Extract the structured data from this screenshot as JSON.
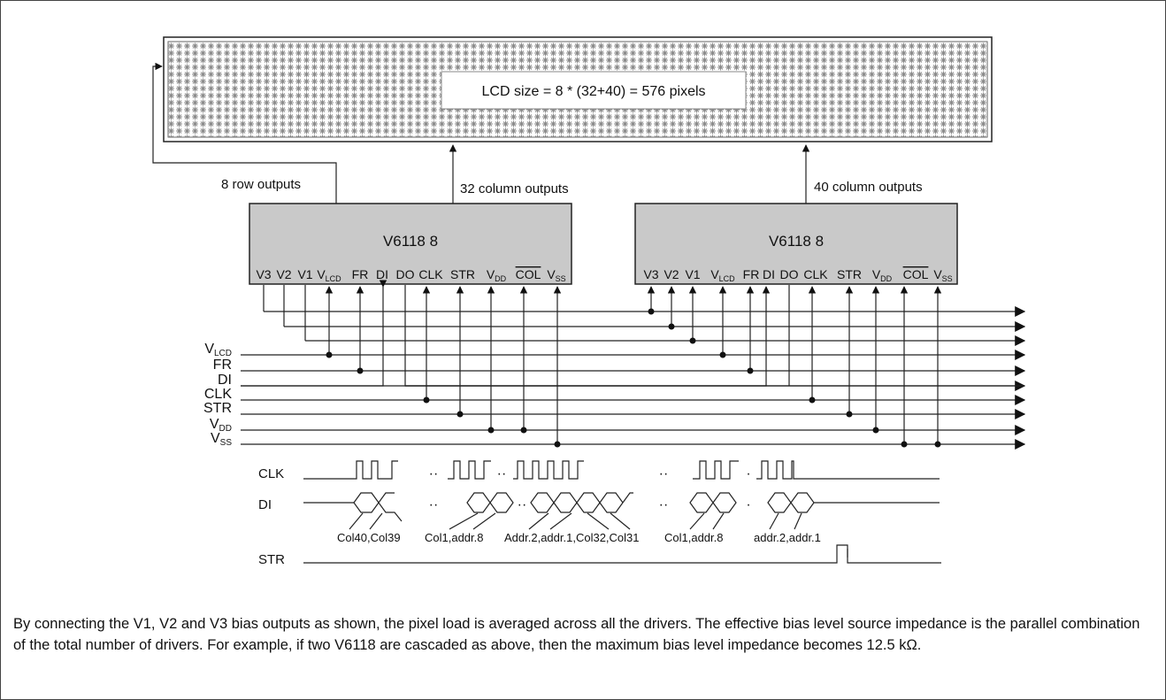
{
  "lcd_label": "LCD size = 8 * (32+40) = 576 pixels",
  "output_labels": {
    "rows": "8 row outputs",
    "cols_left": "32 column outputs",
    "cols_right": "40 column outputs"
  },
  "chips": [
    {
      "title": "V6118 8",
      "pins": [
        "V3",
        "V2",
        "V1",
        "V",
        "FR",
        "DI",
        "DO",
        "CLK",
        "STR",
        "V",
        "COL",
        "V"
      ],
      "pin_subs": [
        "",
        "",
        "",
        "LCD",
        "",
        "",
        "",
        "",
        "",
        "DD",
        "",
        "SS"
      ]
    },
    {
      "title": "V6118 8",
      "pins": [
        "V3",
        "V2",
        "V1",
        "V",
        "FR",
        "DI",
        "DO",
        "CLK",
        "STR",
        "V",
        "COL",
        "V"
      ],
      "pin_subs": [
        "",
        "",
        "",
        "LCD",
        "",
        "",
        "",
        "",
        "",
        "DD",
        "",
        "SS"
      ]
    }
  ],
  "bus_labels": [
    {
      "main": "V",
      "sub": "LCD"
    },
    {
      "main": "FR",
      "sub": ""
    },
    {
      "main": "DI",
      "sub": ""
    },
    {
      "main": "CLK",
      "sub": ""
    },
    {
      "main": "STR",
      "sub": ""
    },
    {
      "main": "V",
      "sub": "DD"
    },
    {
      "main": "V",
      "sub": "SS"
    }
  ],
  "timing": {
    "signals": [
      "CLK",
      "DI",
      "STR"
    ],
    "ellipsis": "··",
    "dot": "·",
    "annotations": [
      "Col40,Col39",
      "Col1,addr.8",
      "Addr.2,addr.1,Col32,Col31",
      "Col1,addr.8",
      "addr.2,addr.1"
    ]
  },
  "caption": "By connecting the V1, V2 and V3 bias outputs as shown, the pixel load is averaged across all the drivers. The effective bias level source impedance is the parallel combination of the total number of drivers.  For example, if two V6118 are cascaded as above, then the maximum bias level impedance becomes 12.5 kΩ."
}
